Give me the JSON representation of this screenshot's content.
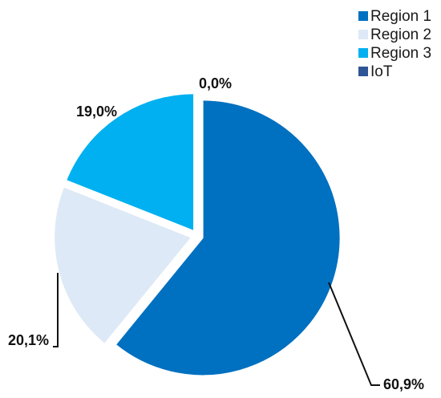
{
  "chart_data": {
    "type": "pie",
    "categories": [
      "Region 1",
      "Region 2",
      "Region 3",
      "IoT"
    ],
    "values": [
      60.9,
      20.1,
      19.0,
      0.0
    ],
    "value_labels": [
      "60,9%",
      "20,1%",
      "19,0%",
      "0,0%"
    ],
    "colors": [
      "#0070c0",
      "#dde9f6",
      "#00b0f0",
      "#2e5596"
    ],
    "legend": "top-right"
  }
}
